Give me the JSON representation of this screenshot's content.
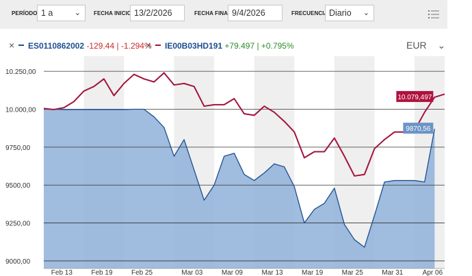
{
  "filters": {
    "period_label": "PERÍODO",
    "period_value": "1 a",
    "start_label": "FECHA INICIO",
    "start_value": "13/2/2026",
    "end_label": "FECHA FINAL",
    "end_value": "9/4/2026",
    "freq_label": "FRECUENCIA",
    "freq_value": "Diario"
  },
  "legend": {
    "series1": {
      "name": "ES0110862002",
      "change": "-129.44",
      "pct": "-1.294%",
      "color": "#1d4f91"
    },
    "series2": {
      "name": "IE00B03HD191",
      "change": "+79.497",
      "pct": "+0.795%",
      "color": "#a3123a"
    },
    "currency": "EUR"
  },
  "colors": {
    "positive": "#2e8b2e",
    "negative": "#cc2a2a",
    "area": "#8fb0d8",
    "line1": "#1d4f91",
    "line2": "#a3123a"
  },
  "chart_data": {
    "type": "line",
    "ylim": [
      8950,
      10350
    ],
    "yticks": [
      10250,
      10000,
      9750,
      9500,
      9250,
      9000
    ],
    "ytick_labels": [
      "10.250,00",
      "10.000,00",
      "9750,00",
      "9500,00",
      "9250,00",
      "9000,00"
    ],
    "xtick_labels": [
      "Feb 13",
      "Feb 19",
      "Feb 25",
      "Mar 03",
      "Mar 09",
      "Mar 13",
      "Mar 19",
      "Mar 25",
      "Mar 31",
      "Apr 06"
    ],
    "xtick_index": [
      0,
      4,
      8,
      13,
      17,
      21,
      25,
      29,
      33,
      37
    ],
    "series": [
      {
        "name": "ES0110862002",
        "values": [
          10000,
          10000,
          9998,
          9998,
          9998,
          9998,
          9998,
          9998,
          9998,
          10000,
          10000,
          9950,
          9880,
          9690,
          9800,
          9600,
          9400,
          9500,
          9690,
          9710,
          9570,
          9530,
          9580,
          9640,
          9620,
          9490,
          9250,
          9340,
          9380,
          9480,
          9240,
          9140,
          9090,
          9300,
          9520,
          9530,
          9530,
          9530,
          9520,
          9870.56
        ],
        "end_label": "9870,56"
      },
      {
        "name": "IE00B03HD191",
        "values": [
          10005,
          9998,
          10010,
          10050,
          10120,
          10150,
          10200,
          10090,
          10170,
          10230,
          10200,
          10180,
          10240,
          10160,
          10170,
          10150,
          10020,
          10030,
          10030,
          10070,
          9970,
          9960,
          10020,
          9980,
          9920,
          9850,
          9680,
          9720,
          9720,
          9810,
          9690,
          9560,
          9570,
          9740,
          9800,
          9850,
          9850,
          9860,
          9980,
          10079.497
        ],
        "end_label": "10.079,497"
      }
    ]
  }
}
